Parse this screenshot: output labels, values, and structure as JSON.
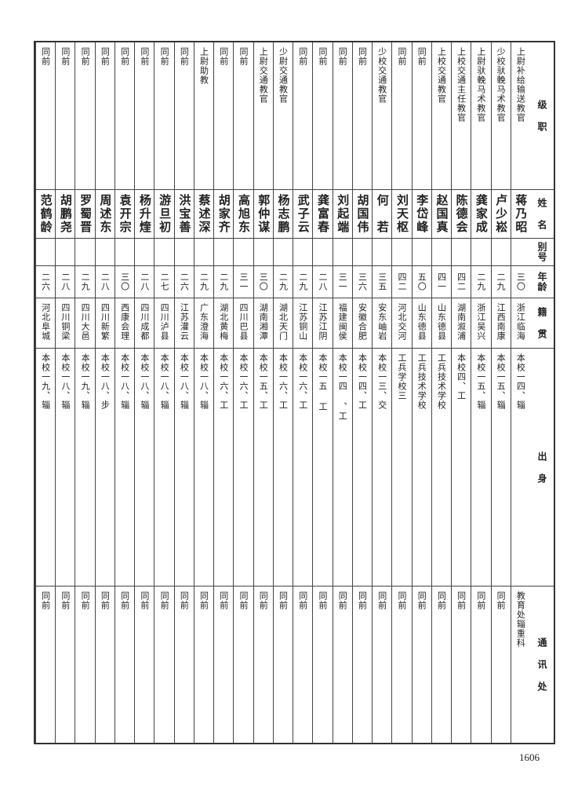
{
  "headers": {
    "rank_position": "级 职",
    "name": "姓 名",
    "alias": "别号",
    "age": "年龄",
    "native_place": "籍 贯",
    "background": "出 身",
    "address": "通 讯 处"
  },
  "rows": [
    {
      "rank_position": "上尉补给输送教官",
      "name": "蒋乃昭",
      "alias": "",
      "age": "三〇",
      "native_place": "浙江临海",
      "background": "本校一四、辎",
      "address": "教育处辎重科"
    },
    {
      "rank_position": "少校驮輓马术教官",
      "name": "卢少崧",
      "alias": "",
      "age": "二九",
      "native_place": "江西南康",
      "background": "本校一五、辎",
      "address": "同前"
    },
    {
      "rank_position": "上尉驮輓马术教官",
      "name": "龚家成",
      "alias": "",
      "age": "二九",
      "native_place": "浙江吴兴",
      "background": "本校一五、辎",
      "address": "同前"
    },
    {
      "rank_position": "上校交通主任教官",
      "name": "陈德会",
      "alias": "",
      "age": "四二",
      "native_place": "湖南溆浦",
      "background": "本校四、工",
      "address": "同前"
    },
    {
      "rank_position": "上校交通教官",
      "name": "赵国真",
      "alias": "",
      "age": "四一",
      "native_place": "山东德县",
      "background": "工兵技术学校",
      "address": "同前"
    },
    {
      "rank_position": "同前",
      "name": "李岱峰",
      "alias": "",
      "age": "五〇",
      "native_place": "山东德县",
      "background": "工兵技术学校",
      "address": "同前"
    },
    {
      "rank_position": "同前",
      "name": "刘天枢",
      "alias": "",
      "age": "四二",
      "native_place": "河北交河",
      "background": "工兵学校三",
      "address": "同前"
    },
    {
      "rank_position": "少校交通教官",
      "name": "何　若",
      "alias": "",
      "age": "三五",
      "native_place": "安东岫岩",
      "background": "本校一三、交",
      "address": "同前"
    },
    {
      "rank_position": "同前",
      "name": "胡国伟",
      "alias": "",
      "age": "三六",
      "native_place": "安徽合肥",
      "background": "本校一四、工",
      "address": "同前"
    },
    {
      "rank_position": "同前",
      "name": "刘起端",
      "alias": "",
      "age": "三一",
      "native_place": "福建闽侯",
      "background": "本校一四 、工",
      "address": "同前"
    },
    {
      "rank_position": "同前",
      "name": "龚富春",
      "alias": "",
      "age": "二八",
      "native_place": "江苏江阴",
      "background": "本校一五 工",
      "address": "同前"
    },
    {
      "rank_position": "同前",
      "name": "武子云",
      "alias": "",
      "age": "二九",
      "native_place": "江苏铜山",
      "background": "本校一六、工",
      "address": "同前"
    },
    {
      "rank_position": "少尉交通教官",
      "name": "杨志鹏",
      "alias": "",
      "age": "二九",
      "native_place": "湖北天门",
      "background": "本校一六、工",
      "address": "同前"
    },
    {
      "rank_position": "上尉交通教官",
      "name": "郭仲谋",
      "alias": "",
      "age": "三〇",
      "native_place": "湖南湘潭",
      "background": "本校一五、工",
      "address": "同前"
    },
    {
      "rank_position": "同前",
      "name": "高旭东",
      "alias": "",
      "age": "三一",
      "native_place": "四川巴县",
      "background": "本校一六、工",
      "address": "同前"
    },
    {
      "rank_position": "同前",
      "name": "胡家齐",
      "alias": "",
      "age": "二九",
      "native_place": "湖北黄梅",
      "background": "本校一六、工",
      "address": "同前"
    },
    {
      "rank_position": "上尉助教",
      "name": "蔡述深",
      "alias": "",
      "age": "二九",
      "native_place": "广东澄海",
      "background": "本校一八、辎",
      "address": "同前"
    },
    {
      "rank_position": "同前",
      "name": "洪宝善",
      "alias": "",
      "age": "二六",
      "native_place": "江苏灌云",
      "background": "本校一八、辎",
      "address": "同前"
    },
    {
      "rank_position": "同前",
      "name": "游旦初",
      "alias": "",
      "age": "二七",
      "native_place": "四川泸县",
      "background": "本校一八、辎",
      "address": "同前"
    },
    {
      "rank_position": "同前",
      "name": "杨升煃",
      "alias": "",
      "age": "二八",
      "native_place": "四川成都",
      "background": "本校一八、辎",
      "address": "同前"
    },
    {
      "rank_position": "同前",
      "name": "袁开宗",
      "alias": "",
      "age": "三〇",
      "native_place": "西康会理",
      "background": "本校一八、辎",
      "address": "同前"
    },
    {
      "rank_position": "同前",
      "name": "周述东",
      "alias": "",
      "age": "二八",
      "native_place": "四川新繁",
      "background": "本校一八、步",
      "address": "同前"
    },
    {
      "rank_position": "同前",
      "name": "罗蜀晋",
      "alias": "",
      "age": "二九",
      "native_place": "四川大邑",
      "background": "本校一九、辎",
      "address": "同前"
    },
    {
      "rank_position": "同前",
      "name": "胡鹏尧",
      "alias": "",
      "age": "二八",
      "native_place": "四川铜梁",
      "background": "本校一八、辎",
      "address": "同前"
    },
    {
      "rank_position": "同前",
      "name": "范鹤龄",
      "alias": "",
      "age": "二六",
      "native_place": "河北阜城",
      "background": "本校一九、辎",
      "address": "同前"
    }
  ],
  "page_number": "1606"
}
